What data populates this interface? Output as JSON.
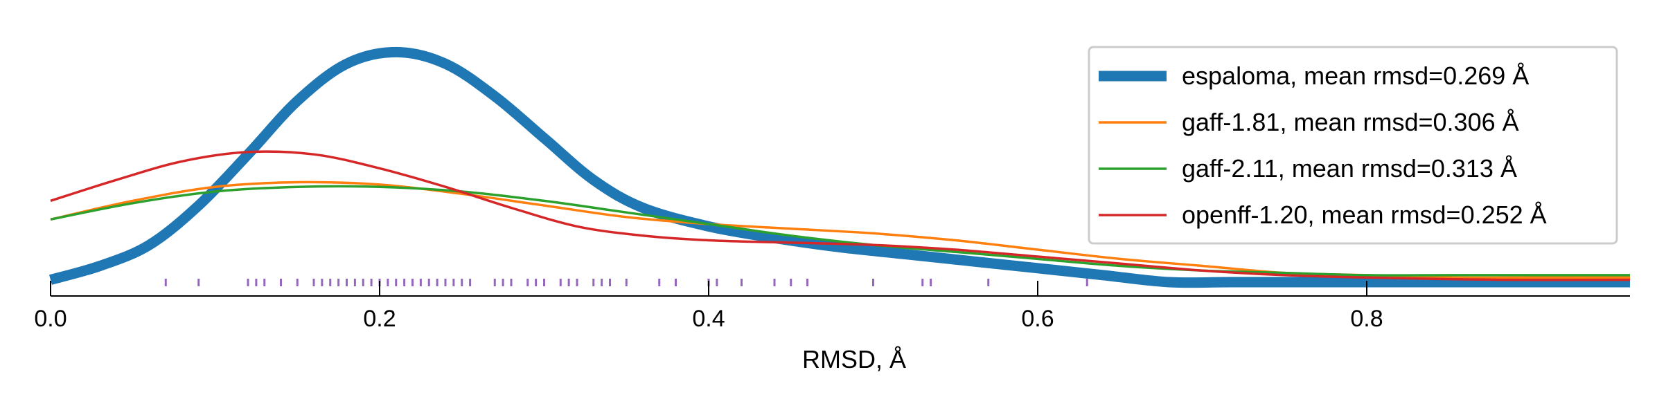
{
  "chart_data": {
    "type": "line",
    "title": "",
    "xlabel": "RMSD, Å",
    "ylabel": "",
    "xlim": [
      0.0,
      0.96
    ],
    "ylim": [
      0,
      1.0
    ],
    "xticks": [
      0.0,
      0.2,
      0.4,
      0.6,
      0.8
    ],
    "xtick_labels": [
      "0.0",
      "0.2",
      "0.4",
      "0.6",
      "0.8"
    ],
    "grid": false,
    "legend_position": "top-right",
    "series": [
      {
        "name": "espaloma, mean rmsd=0.269 Å",
        "color": "#1f77b4",
        "line": "thick",
        "x": [
          0.0,
          0.03,
          0.06,
          0.09,
          0.12,
          0.15,
          0.18,
          0.21,
          0.24,
          0.27,
          0.3,
          0.33,
          0.36,
          0.4,
          0.44,
          0.48,
          0.52,
          0.56,
          0.6,
          0.64,
          0.68,
          0.72,
          0.8,
          0.88,
          0.96
        ],
        "y": [
          0.01,
          0.07,
          0.16,
          0.33,
          0.55,
          0.78,
          0.94,
          0.99,
          0.94,
          0.8,
          0.62,
          0.44,
          0.32,
          0.24,
          0.19,
          0.15,
          0.12,
          0.09,
          0.06,
          0.03,
          0.0,
          0.0,
          0.0,
          0.0,
          0.0
        ]
      },
      {
        "name": "gaff-1.81, mean rmsd=0.306 Å",
        "color": "#ff7f0e",
        "line": "thin",
        "x": [
          0.0,
          0.05,
          0.1,
          0.15,
          0.2,
          0.25,
          0.3,
          0.35,
          0.4,
          0.45,
          0.5,
          0.55,
          0.6,
          0.65,
          0.7,
          0.75,
          0.8,
          0.85,
          0.9,
          0.96
        ],
        "y": [
          0.27,
          0.35,
          0.41,
          0.43,
          0.42,
          0.38,
          0.33,
          0.28,
          0.25,
          0.23,
          0.21,
          0.18,
          0.14,
          0.1,
          0.07,
          0.04,
          0.03,
          0.02,
          0.02,
          0.02
        ]
      },
      {
        "name": "gaff-2.11, mean rmsd=0.313 Å",
        "color": "#2ca02c",
        "line": "thin",
        "x": [
          0.0,
          0.05,
          0.1,
          0.15,
          0.2,
          0.25,
          0.3,
          0.35,
          0.4,
          0.45,
          0.5,
          0.55,
          0.6,
          0.65,
          0.7,
          0.75,
          0.8,
          0.85,
          0.9,
          0.96
        ],
        "y": [
          0.27,
          0.34,
          0.39,
          0.41,
          0.41,
          0.39,
          0.35,
          0.3,
          0.25,
          0.2,
          0.16,
          0.13,
          0.1,
          0.07,
          0.05,
          0.04,
          0.03,
          0.03,
          0.03,
          0.03
        ]
      },
      {
        "name": "openff-1.20, mean rmsd=0.252 Å",
        "color": "#d62728",
        "line": "thin",
        "x": [
          0.0,
          0.04,
          0.08,
          0.12,
          0.16,
          0.2,
          0.24,
          0.28,
          0.32,
          0.36,
          0.4,
          0.45,
          0.5,
          0.55,
          0.6,
          0.65,
          0.7,
          0.75,
          0.8,
          0.88,
          0.96
        ],
        "y": [
          0.35,
          0.44,
          0.52,
          0.56,
          0.55,
          0.49,
          0.41,
          0.32,
          0.24,
          0.2,
          0.18,
          0.17,
          0.16,
          0.14,
          0.11,
          0.08,
          0.05,
          0.03,
          0.02,
          0.01,
          0.01
        ]
      }
    ],
    "rug": {
      "color": "#9467bd",
      "x": [
        0.07,
        0.09,
        0.12,
        0.125,
        0.13,
        0.14,
        0.15,
        0.16,
        0.165,
        0.17,
        0.175,
        0.18,
        0.185,
        0.19,
        0.195,
        0.2,
        0.205,
        0.21,
        0.215,
        0.22,
        0.225,
        0.23,
        0.235,
        0.24,
        0.245,
        0.25,
        0.255,
        0.27,
        0.275,
        0.28,
        0.29,
        0.295,
        0.3,
        0.31,
        0.315,
        0.32,
        0.33,
        0.335,
        0.34,
        0.35,
        0.37,
        0.38,
        0.4,
        0.405,
        0.42,
        0.44,
        0.45,
        0.46,
        0.5,
        0.53,
        0.535,
        0.57,
        0.63
      ]
    }
  }
}
